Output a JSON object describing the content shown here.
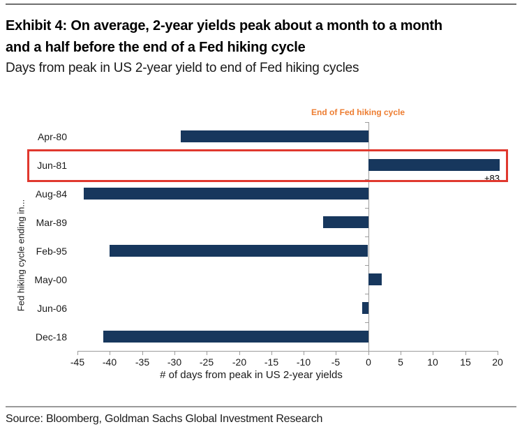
{
  "header": {
    "title_lines": [
      "Exhibit 4: On average, 2-year yields peak about a month to a month",
      "and a half before the end of a Fed hiking cycle"
    ],
    "subtitle": "Days from peak in US 2-year yield to end of Fed hiking cycles"
  },
  "footer": {
    "source": "Source: Bloomberg, Goldman Sachs Global Investment Research"
  },
  "chart_data": {
    "type": "bar",
    "orientation": "horizontal",
    "title": "Days from peak in US 2-year yield to end of Fed hiking cycles",
    "categories": [
      "Apr-80",
      "Jun-81",
      "Aug-84",
      "Mar-89",
      "Feb-95",
      "May-00",
      "Jun-06",
      "Dec-18"
    ],
    "values": [
      -29,
      83,
      -44,
      -7,
      -40,
      2,
      -1,
      -41
    ],
    "display_clip_max": 20.3,
    "bar_value_labels": {
      "Jun-81": "+83"
    },
    "highlight_category": "Jun-81",
    "annotation": "End of Fed hiking cycle",
    "xlabel": "# of days from peak in US 2-year yields",
    "ylabel": "Fed hiking cycle ending in...",
    "xticks": [
      -45,
      -40,
      -35,
      -30,
      -25,
      -20,
      -15,
      -10,
      -5,
      0,
      5,
      10,
      15,
      20
    ],
    "xlim": [
      -45,
      20
    ],
    "grid": false,
    "legend": false,
    "colors": {
      "bar": "#17375D",
      "highlight_box": "#E0382E",
      "annotation": "#ED7D31",
      "axis": "#9C9C9C",
      "text": "#1A1A1A"
    }
  }
}
